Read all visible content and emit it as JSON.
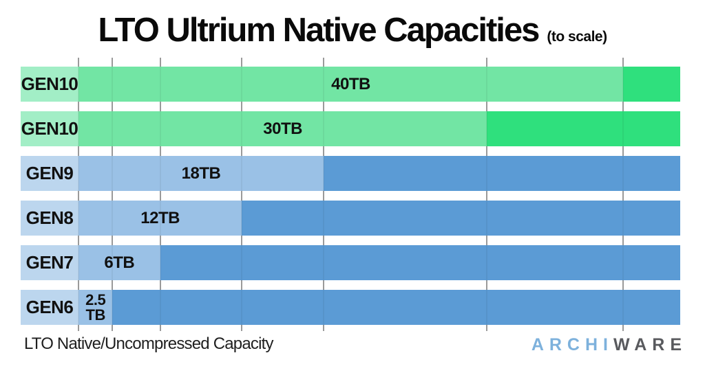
{
  "title": {
    "main": "LTO Ultrium Native Capacities",
    "suffix": "(to scale)"
  },
  "footer": {
    "caption": "LTO Native/Uncompressed Capacity",
    "logo": {
      "part1": "ARCHI",
      "part2": "WARE"
    }
  },
  "colors": {
    "green_label_box": "#a2eec6",
    "green_bar": "#72e5a4",
    "green_track": "#2fe07d",
    "blue_label_box": "#bcd6ee",
    "blue_bar": "#9ac1e6",
    "blue_track": "#5b9bd5",
    "gridline": "#a3a3a3",
    "title_text": "#0a0a0a",
    "caption_text": "#1f1f1f",
    "logo_blue": "#7db1dc",
    "logo_gray": "#595a5e"
  },
  "chart_data": {
    "type": "bar",
    "orientation": "horizontal",
    "title": "LTO Ultrium Native Capacities (to scale)",
    "xlabel": "LTO Native/Uncompressed Capacity",
    "unit": "TB",
    "xlim": [
      0,
      44.2
    ],
    "categories": [
      "GEN10",
      "GEN10",
      "GEN9",
      "GEN8",
      "GEN7",
      "GEN6"
    ],
    "values": [
      40,
      30,
      18,
      12,
      6,
      2.5
    ],
    "gridlines_tb": [
      0,
      2.5,
      6,
      12,
      18,
      30,
      40
    ],
    "legend_position": "none",
    "rows": [
      {
        "label": "GEN10",
        "capacity_tb": 40,
        "value_label": "40TB",
        "theme": "green"
      },
      {
        "label": "GEN10",
        "capacity_tb": 30,
        "value_label": "30TB",
        "theme": "green"
      },
      {
        "label": "GEN9",
        "capacity_tb": 18,
        "value_label": "18TB",
        "theme": "blue"
      },
      {
        "label": "GEN8",
        "capacity_tb": 12,
        "value_label": "12TB",
        "theme": "blue"
      },
      {
        "label": "GEN7",
        "capacity_tb": 6,
        "value_label": "6TB",
        "theme": "blue"
      },
      {
        "label": "GEN6",
        "capacity_tb": 2.5,
        "value_label": "2.5\nTB",
        "theme": "blue"
      }
    ]
  }
}
